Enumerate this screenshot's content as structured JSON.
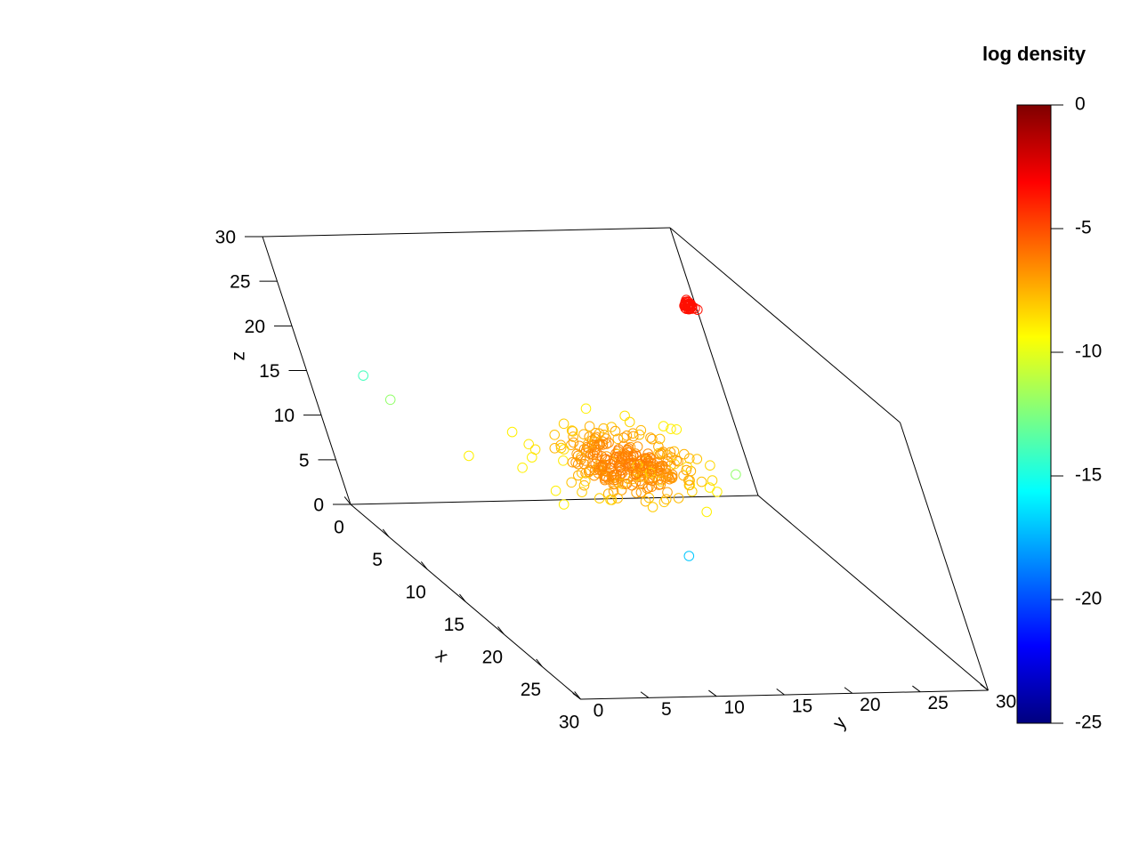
{
  "chart_data": {
    "type": "scatter",
    "projection": "3d",
    "title": "",
    "axes": {
      "x": {
        "label": "x",
        "range": [
          0,
          30
        ],
        "ticks": [
          0,
          5,
          10,
          15,
          20,
          25,
          30
        ]
      },
      "y": {
        "label": "y",
        "range": [
          0,
          30
        ],
        "ticks": [
          0,
          5,
          10,
          15,
          20,
          25,
          30
        ]
      },
      "z": {
        "label": "z",
        "range": [
          0,
          30
        ],
        "ticks": [
          0,
          5,
          10,
          15,
          20,
          25,
          30
        ]
      }
    },
    "clusters": [
      {
        "center": [
          15,
          15,
          15
        ],
        "sd": [
          1.8,
          2.2,
          1.5
        ],
        "n": 320,
        "log_density_range": [
          -9,
          -6
        ]
      },
      {
        "center": [
          5,
          27.5,
          25
        ],
        "sd": [
          0.2,
          0.2,
          0.2
        ],
        "n": 40,
        "log_density": -3.5
      }
    ],
    "outliers": [
      {
        "x": 5,
        "y": 2,
        "z": 18,
        "log_density": -14
      },
      {
        "x": 6,
        "y": 3,
        "z": 16,
        "log_density": -12
      },
      {
        "x": 21,
        "y": 15,
        "z": 9,
        "log_density": -17
      },
      {
        "x": 17,
        "y": 22,
        "z": 15,
        "log_density": -12
      }
    ],
    "colorbar": {
      "title": "log density",
      "range": [
        -25,
        0
      ],
      "ticks": [
        0,
        -5,
        -10,
        -15,
        -20,
        -25
      ],
      "colors": [
        "#00007F",
        "#0000FF",
        "#007FFF",
        "#00FFFF",
        "#7FFF7F",
        "#FFFF00",
        "#FF7F00",
        "#FF0000",
        "#7F0000"
      ]
    },
    "marker": "open-circle",
    "grid": false
  }
}
